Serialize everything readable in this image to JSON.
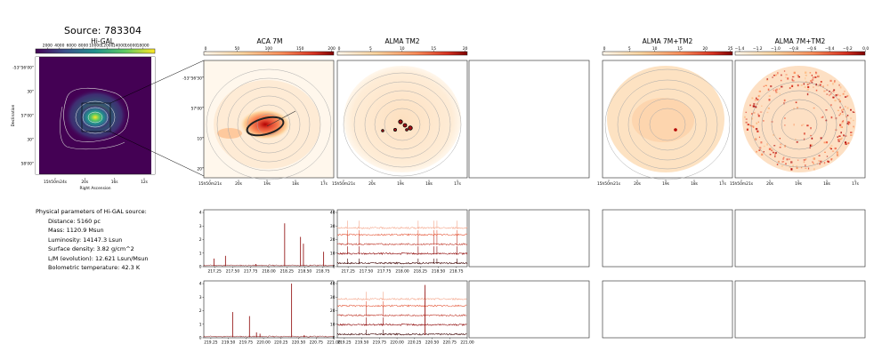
{
  "source_title": "Source: 783304",
  "panels": {
    "higal": {
      "title": "Hi-GAL"
    },
    "aca7m": {
      "title": "ACA 7M"
    },
    "almatm2": {
      "title": "ALMA TM2"
    },
    "alma7mtm2": {
      "title": "ALMA 7M+TM2"
    },
    "alma7mtm2b": {
      "title": "ALMA 7M+TM2"
    }
  },
  "params": {
    "heading": "Physical parameters of Hi-GAL source:",
    "distance": "Distance: 5160 pc",
    "mass": "Mass: 1120.9 Msun",
    "luminosity": "Luminosity: 14147.3 Lsun",
    "surface_density": "Surface density: 3.82 g/cm^2",
    "lm": "L/M (evolution): 12.621 Lsun/Msun",
    "temperature": "Bolometric temperature: 42.3 K"
  },
  "colors": {
    "viridis": [
      "#440154",
      "#3b528b",
      "#21918c",
      "#5ec962",
      "#fde725"
    ],
    "orrd": [
      "#fff7ec",
      "#fdd49e",
      "#fc8d59",
      "#d7301f",
      "#7f0000"
    ]
  },
  "chart_data": [
    {
      "type": "heatmap",
      "id": "higal",
      "title": "Hi-GAL",
      "xlabel": "Right Ascension",
      "ylabel": "Declination",
      "colorbar_ticks": [
        "2000",
        "4000",
        "6000",
        "8000",
        "10000",
        "12000",
        "14000",
        "16000",
        "18000"
      ],
      "x_ticks": [
        "15h50m24s",
        "20s",
        "16s",
        "12s"
      ],
      "y_ticks": [
        "-53°56'00\"",
        "30\"",
        "57'00\"",
        "30\"",
        "58'00\""
      ]
    },
    {
      "type": "heatmap",
      "id": "aca7m",
      "title": "ACA 7M",
      "colorbar_ticks": [
        "0",
        "50",
        "100",
        "150",
        "200"
      ],
      "x_ticks": [
        "15h50m21s",
        "20s",
        "19s",
        "18s",
        "17s"
      ],
      "y_ticks": [
        "-53°56'50\"",
        "57'00\"",
        "10\"",
        "20\""
      ]
    },
    {
      "type": "heatmap",
      "id": "almatm2",
      "title": "ALMA TM2",
      "colorbar_ticks": [
        "0",
        "5",
        "10",
        "15",
        "20"
      ],
      "x_ticks": [
        "15h50m21s",
        "20s",
        "19s",
        "18s",
        "17s"
      ]
    },
    {
      "type": "heatmap",
      "id": "alma7mtm2",
      "title": "ALMA 7M+TM2",
      "colorbar_ticks": [
        "0",
        "5",
        "10",
        "15",
        "20",
        "25"
      ],
      "x_ticks": [
        "15h50m21s",
        "20s",
        "19s",
        "18s",
        "17s"
      ]
    },
    {
      "type": "heatmap",
      "id": "alma7mtm2b",
      "title": "ALMA 7M+TM2",
      "colorbar_ticks": [
        "−1.4",
        "−1.2",
        "−1.0",
        "−0.8",
        "−0.6",
        "−0.4",
        "−0.2",
        "0.0"
      ],
      "x_ticks": [
        "15h50m21s",
        "20s",
        "19s",
        "18s",
        "17s"
      ]
    },
    {
      "type": "line",
      "id": "spec-aca-top",
      "xlim": [
        217.1,
        218.9
      ],
      "ylim": [
        0,
        4.2
      ],
      "x_ticks": [
        "217.25",
        "217.50",
        "217.75",
        "218.00",
        "218.25",
        "218.50",
        "218.75"
      ],
      "y_ticks": [
        "0",
        "1",
        "2",
        "3",
        "4"
      ],
      "peaks": [
        [
          217.24,
          0.6
        ],
        [
          217.4,
          0.8
        ],
        [
          217.82,
          0.2
        ],
        [
          218.22,
          3.2
        ],
        [
          218.44,
          2.2
        ],
        [
          218.48,
          1.7
        ],
        [
          218.76,
          1.1
        ]
      ]
    },
    {
      "type": "line",
      "id": "spec-tm2-top",
      "xlim": [
        217.1,
        218.9
      ],
      "ylim": [
        0,
        42
      ],
      "x_ticks": [
        "217.25",
        "217.50",
        "217.75",
        "218.00",
        "218.25",
        "218.50",
        "218.75"
      ],
      "y_ticks": [
        "0",
        "10",
        "20",
        "30",
        "40"
      ],
      "offsets": [
        2,
        9,
        16,
        23,
        28
      ],
      "peaks": [
        217.24,
        217.4,
        218.22,
        218.44,
        218.48,
        218.76
      ]
    },
    {
      "type": "line",
      "id": "spec-aca-bot",
      "xlim": [
        219.15,
        221.0
      ],
      "ylim": [
        0,
        4.2
      ],
      "x_ticks": [
        "219.25",
        "219.50",
        "219.75",
        "220.00",
        "220.25",
        "220.50",
        "220.75",
        "221.00"
      ],
      "y_ticks": [
        "0",
        "1",
        "2",
        "3",
        "4"
      ],
      "peaks": [
        [
          219.56,
          1.9
        ],
        [
          219.8,
          1.6
        ],
        [
          219.9,
          0.4
        ],
        [
          219.95,
          0.3
        ],
        [
          220.4,
          4.0
        ],
        [
          220.58,
          0.2
        ]
      ]
    },
    {
      "type": "line",
      "id": "spec-tm2-bot",
      "xlim": [
        219.15,
        221.0
      ],
      "ylim": [
        0,
        42
      ],
      "x_ticks": [
        "219.25",
        "219.50",
        "219.75",
        "220.00",
        "220.25",
        "220.50",
        "220.75",
        "221.00"
      ],
      "y_ticks": [
        "0",
        "10",
        "20",
        "30",
        "40"
      ],
      "offsets": [
        2,
        9,
        16,
        23,
        28
      ],
      "peaks": [
        219.56,
        219.8,
        220.4
      ]
    }
  ]
}
